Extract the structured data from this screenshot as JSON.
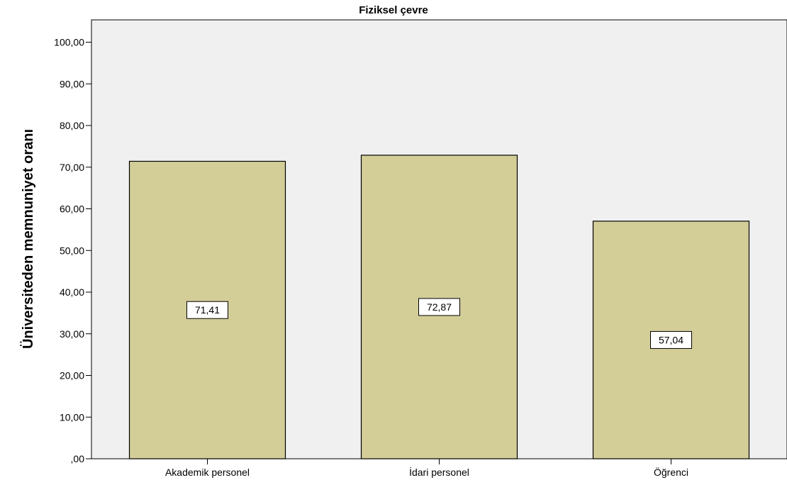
{
  "chart_data": {
    "type": "bar",
    "title": "Fiziksel çevre",
    "ylabel": "Üniversiteden memnuniyet oranı",
    "xlabel": "",
    "categories": [
      "Akademik personel",
      "İdari personel",
      "Öğrenci"
    ],
    "values": [
      71.41,
      72.87,
      57.04
    ],
    "data_labels": [
      "71,41",
      "72,87",
      "57,04"
    ],
    "yticks": [
      ",00",
      "10,00",
      "20,00",
      "30,00",
      "40,00",
      "50,00",
      "60,00",
      "70,00",
      "80,00",
      "90,00",
      "100,00"
    ],
    "ylim": [
      0,
      105
    ],
    "grid": false,
    "legend": false,
    "bar_color": "#d3cd98",
    "plot_background": "#f0f0f0"
  }
}
